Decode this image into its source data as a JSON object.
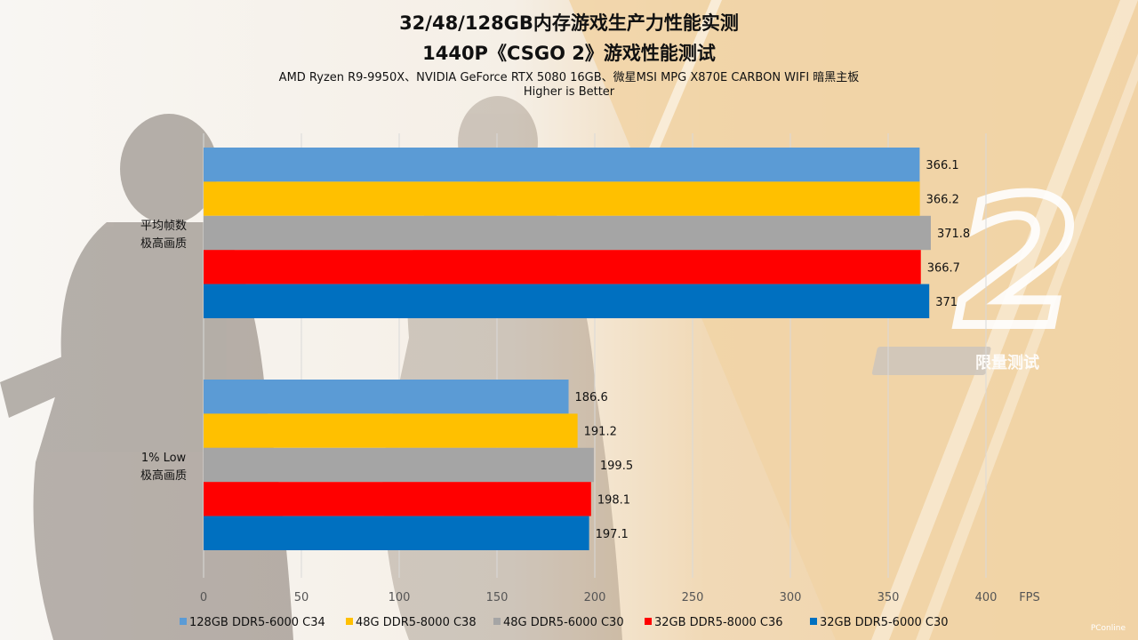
{
  "titles": {
    "main": "32/48/128GB内存游戏生产力性能实测",
    "sub": "1440P《CSGO 2》游戏性能测试",
    "config": "AMD Ryzen R9-9950X、NVIDIA GeForce RTX 5080 16GB、微星MSI MPG X870E CARBON WIFI 暗黑主板",
    "note": "Higher is Better"
  },
  "background": {
    "game_logo_number": "2",
    "badge_text": "限量测试"
  },
  "watermark": "PConline",
  "chart_data": {
    "type": "bar",
    "orientation": "horizontal",
    "categories": [
      [
        "平均帧数",
        "极高画质"
      ],
      [
        "1% Low",
        "极高画质"
      ]
    ],
    "series": [
      {
        "name": "128GB DDR5-6000 C34",
        "color": "#5b9bd5",
        "values": [
          366.1,
          186.6
        ]
      },
      {
        "name": "48G DDR5-8000 C38",
        "color": "#ffc000",
        "values": [
          366.2,
          191.2
        ]
      },
      {
        "name": "48G DDR5-6000 C30",
        "color": "#a5a5a5",
        "values": [
          371.8,
          199.5
        ]
      },
      {
        "name": "32GB DDR5-8000 C36",
        "color": "#ff0000",
        "values": [
          366.7,
          198.1
        ]
      },
      {
        "name": "32GB DDR5-6000 C30",
        "color": "#0070c0",
        "values": [
          371,
          197.1
        ]
      }
    ],
    "value_labels": [
      [
        "366.1",
        "366.2",
        "371.8",
        "366.7",
        "371"
      ],
      [
        "186.6",
        "191.2",
        "199.5",
        "198.1",
        "197.1"
      ]
    ],
    "xlim": [
      0,
      400
    ],
    "xticks": [
      0,
      50,
      100,
      150,
      200,
      250,
      300,
      350,
      400
    ],
    "xlabel": "FPS",
    "grid": true,
    "legend_position": "bottom"
  }
}
